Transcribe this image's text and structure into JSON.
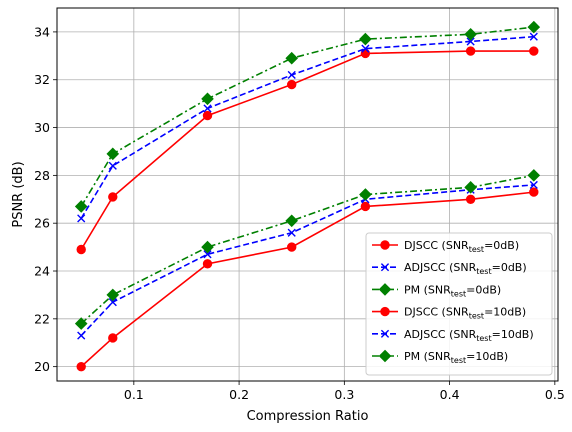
{
  "chart_data": {
    "type": "line",
    "title": "",
    "xlabel": "Compression Ratio",
    "ylabel": "PSNR (dB)",
    "xlim": [
      0.027,
      0.503
    ],
    "ylim": [
      19.4,
      35.0
    ],
    "xticks": [
      "0.1",
      "0.2",
      "0.3",
      "0.4",
      "0.5"
    ],
    "xtick_values": [
      0.1,
      0.2,
      0.3,
      0.4,
      0.5
    ],
    "yticks": [
      "20",
      "22",
      "24",
      "26",
      "28",
      "30",
      "32",
      "34"
    ],
    "ytick_values": [
      20,
      22,
      24,
      26,
      28,
      30,
      32,
      34
    ],
    "grid": true,
    "legend_position": "lower-right",
    "x": [
      0.05,
      0.08,
      0.17,
      0.25,
      0.32,
      0.42,
      0.48
    ],
    "series": [
      {
        "name": "DJSCC (SNR_test=0dB)",
        "name_main": "DJSCC (SNR",
        "name_sub": "test",
        "name_tail": "=0dB)",
        "color": "#ff0000",
        "dash": "solid",
        "marker": "circle",
        "values": [
          24.9,
          27.1,
          30.5,
          31.8,
          33.1,
          33.2,
          33.2
        ]
      },
      {
        "name": "ADJSCC (SNR_test=0dB)",
        "name_main": "ADJSCC (SNR",
        "name_sub": "test",
        "name_tail": "=0dB)",
        "color": "#0000ff",
        "dash": "dashed",
        "marker": "x",
        "values": [
          26.2,
          28.4,
          30.8,
          32.2,
          33.3,
          33.6,
          33.8
        ]
      },
      {
        "name": "PM (SNR_test=0dB)",
        "name_main": "PM (SNR",
        "name_sub": "test",
        "name_tail": "=0dB)",
        "color": "#008000",
        "dash": "dashdot",
        "marker": "diamond",
        "values": [
          26.7,
          28.9,
          31.2,
          32.9,
          33.7,
          33.9,
          34.2
        ]
      },
      {
        "name": "DJSCC (SNR_test=10dB)",
        "name_main": "DJSCC (SNR",
        "name_sub": "test",
        "name_tail": "=10dB)",
        "color": "#ff0000",
        "dash": "solid",
        "marker": "circle",
        "values": [
          20.0,
          21.2,
          24.3,
          25.0,
          26.7,
          27.0,
          27.3
        ]
      },
      {
        "name": "ADJSCC (SNR_test=10dB)",
        "name_main": "ADJSCC (SNR",
        "name_sub": "test",
        "name_tail": "=10dB)",
        "color": "#0000ff",
        "dash": "dashed",
        "marker": "x",
        "values": [
          21.3,
          22.7,
          24.7,
          25.6,
          27.0,
          27.4,
          27.6
        ]
      },
      {
        "name": "PM (SNR_test=10dB)",
        "name_main": "PM (SNR",
        "name_sub": "test",
        "name_tail": "=10dB)",
        "color": "#008000",
        "dash": "dashdot",
        "marker": "diamond",
        "values": [
          21.8,
          23.0,
          25.0,
          26.1,
          27.2,
          27.5,
          28.0
        ]
      }
    ]
  }
}
